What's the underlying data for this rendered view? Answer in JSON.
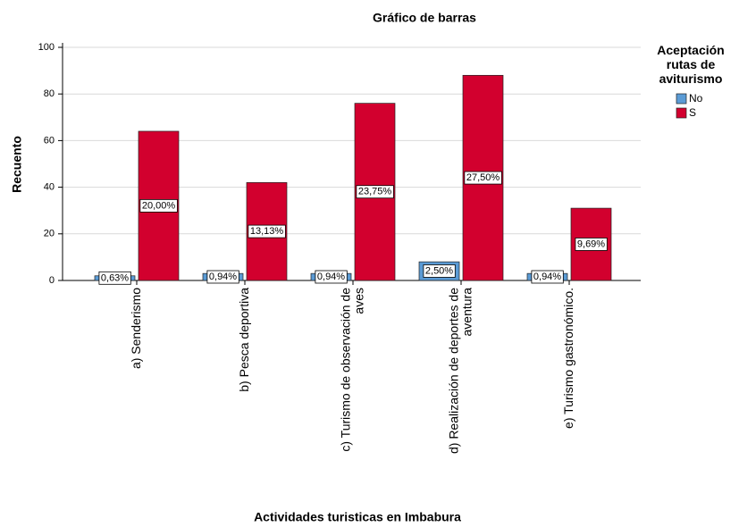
{
  "chart_data": {
    "type": "bar",
    "title": "Gráfico de barras",
    "x_label": "Actividades turisticas en Imbabura",
    "y_label": "Recuento",
    "legend_title": "Aceptación rutas de aviturismo",
    "categories": [
      "a) Senderismo",
      "b) Pesca deportiva",
      "c) Turismo de observación de aves",
      "d) Realización de deportes de aventura",
      "e) Turismo gastronómico."
    ],
    "series": [
      {
        "name": "No",
        "color": "#5b9bd5",
        "values": [
          2,
          3,
          3,
          8,
          3
        ],
        "value_labels": [
          "0,63%",
          "0,94%",
          "0,94%",
          "2,50%",
          "0,94%"
        ]
      },
      {
        "name": "S",
        "color": "#d2002e",
        "values": [
          64,
          42,
          76,
          88,
          31
        ],
        "value_labels": [
          "20,00%",
          "13,13%",
          "23,75%",
          "27,50%",
          "9,69%"
        ]
      }
    ],
    "ylim": [
      0,
      100
    ],
    "yticks": [
      0,
      20,
      40,
      60,
      80,
      100
    ],
    "grid": true,
    "legend": "right"
  }
}
